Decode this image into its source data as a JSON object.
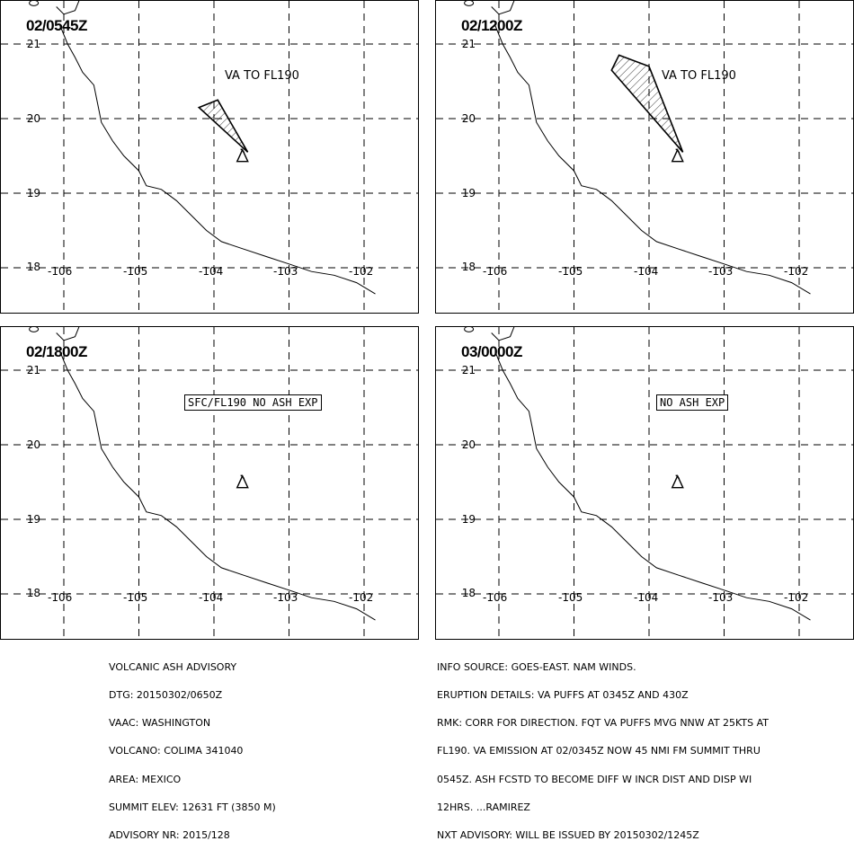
{
  "panels": [
    {
      "time": "02/0545Z",
      "label": "VA TO FL190",
      "label_boxed": false,
      "ash_polygon": [
        [
          -104.2,
          20.15
        ],
        [
          -103.95,
          20.25
        ],
        [
          -103.55,
          19.55
        ]
      ]
    },
    {
      "time": "02/1200Z",
      "label": "VA TO FL190",
      "label_boxed": false,
      "ash_polygon": [
        [
          -104.5,
          20.65
        ],
        [
          -104.4,
          20.85
        ],
        [
          -104.0,
          20.7
        ],
        [
          -103.55,
          19.55
        ]
      ]
    },
    {
      "time": "02/1800Z",
      "label": "SFC/FL190 NO ASH EXP",
      "label_boxed": true,
      "ash_polygon": []
    },
    {
      "time": "03/0000Z",
      "label": "NO ASH EXP",
      "label_boxed": true,
      "ash_polygon": []
    }
  ],
  "map": {
    "lat_labels": [
      "21",
      "20",
      "19",
      "18"
    ],
    "lon_labels": [
      "-106",
      "-105",
      "-104",
      "-103",
      "-102"
    ],
    "volcano_marker": "volcano-triangle-icon",
    "volcano_location": [
      -103.62,
      19.51
    ],
    "coastline": [
      [
        -106.05,
        21.25
      ],
      [
        -105.95,
        21.0
      ],
      [
        -105.85,
        20.82
      ],
      [
        -105.75,
        20.62
      ],
      [
        -105.6,
        20.45
      ],
      [
        -105.55,
        20.2
      ],
      [
        -105.5,
        19.95
      ],
      [
        -105.35,
        19.7
      ],
      [
        -105.2,
        19.5
      ],
      [
        -105.0,
        19.3
      ],
      [
        -104.9,
        19.1
      ],
      [
        -104.7,
        19.05
      ],
      [
        -104.5,
        18.9
      ],
      [
        -104.3,
        18.7
      ],
      [
        -104.1,
        18.5
      ],
      [
        -103.9,
        18.35
      ],
      [
        -103.6,
        18.25
      ],
      [
        -103.3,
        18.15
      ],
      [
        -103.0,
        18.05
      ],
      [
        -102.7,
        17.95
      ],
      [
        -102.4,
        17.9
      ],
      [
        -102.1,
        17.8
      ],
      [
        -101.85,
        17.65
      ]
    ],
    "coastline_north": [
      [
        -106.1,
        21.5
      ],
      [
        -106.0,
        21.4
      ],
      [
        -105.85,
        21.45
      ],
      [
        -105.75,
        21.7
      ]
    ]
  },
  "advisory_left": [
    "VOLCANIC ASH ADVISORY",
    "DTG: 20150302/0650Z",
    "VAAC: WASHINGTON",
    "VOLCANO: COLIMA 341040",
    "AREA: MEXICO",
    "SUMMIT ELEV: 12631 FT (3850 M)",
    "ADVISORY NR: 2015/128"
  ],
  "advisory_right": [
    "INFO SOURCE: GOES-EAST. NAM WINDS.",
    "ERUPTION DETAILS: VA PUFFS AT 0345Z AND 430Z",
    "RMK: CORR FOR DIRECTION. FQT VA PUFFS MVG NNW AT 25KTS AT",
    "FL190. VA EMISSION AT 02/0345Z NOW 45 NMI FM SUMMIT THRU",
    "0545Z. ASH FCSTD TO BECOME DIFF W INCR DIST AND DISP WI",
    "12HRS. ...RAMIREZ",
    "NXT ADVISORY: WILL BE ISSUED BY 20150302/1245Z"
  ]
}
